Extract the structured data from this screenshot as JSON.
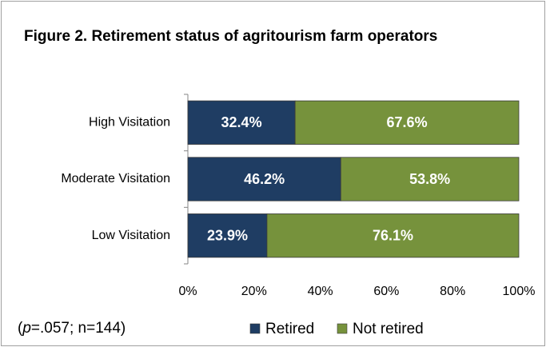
{
  "chart_data": {
    "type": "stacked_barh",
    "title": "Figure 2. Retirement status of agritourism farm operators",
    "categories": [
      "High Visitation",
      "Moderate Visitation",
      "Low Visitation"
    ],
    "series": [
      {
        "name": "Retired",
        "color": "#1f3d63",
        "values": [
          32.4,
          46.2,
          23.9
        ],
        "value_labels": [
          "32.4%",
          "46.2%",
          "23.9%"
        ]
      },
      {
        "name": "Not retired",
        "color": "#76923c",
        "values": [
          67.6,
          53.8,
          76.1
        ],
        "value_labels": [
          "67.6%",
          "53.8%",
          "76.1%"
        ]
      }
    ],
    "xlim": [
      0,
      100
    ],
    "xticks": [
      {
        "value": 0,
        "label": "0%"
      },
      {
        "value": 20,
        "label": "20%"
      },
      {
        "value": 40,
        "label": "40%"
      },
      {
        "value": 60,
        "label": "60%"
      },
      {
        "value": 80,
        "label": "80%"
      },
      {
        "value": 100,
        "label": "100%"
      }
    ],
    "legend": "bottom",
    "note": {
      "open": "(",
      "italic": "p",
      "rest": "=.057; n=144)"
    }
  }
}
